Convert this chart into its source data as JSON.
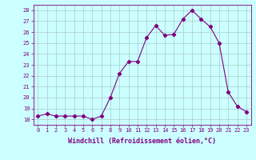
{
  "x": [
    0,
    1,
    2,
    3,
    4,
    5,
    6,
    7,
    8,
    9,
    10,
    11,
    12,
    13,
    14,
    15,
    16,
    17,
    18,
    19,
    20,
    21,
    22,
    23
  ],
  "y": [
    18.3,
    18.5,
    18.3,
    18.3,
    18.3,
    18.3,
    18.0,
    18.3,
    20.0,
    22.2,
    23.3,
    23.3,
    25.5,
    26.6,
    25.7,
    25.8,
    27.2,
    28.0,
    27.2,
    26.5,
    25.0,
    20.5,
    19.2,
    18.7
  ],
  "line_color": "#800080",
  "marker": "D",
  "marker_size": 2.2,
  "bg_color": "#ccffff",
  "grid_color": "#aacccc",
  "xlabel": "Windchill (Refroidissement éolien,°C)",
  "xlim": [
    -0.5,
    23.5
  ],
  "ylim": [
    17.5,
    28.5
  ],
  "yticks": [
    18,
    19,
    20,
    21,
    22,
    23,
    24,
    25,
    26,
    27,
    28
  ],
  "xticks": [
    0,
    1,
    2,
    3,
    4,
    5,
    6,
    7,
    8,
    9,
    10,
    11,
    12,
    13,
    14,
    15,
    16,
    17,
    18,
    19,
    20,
    21,
    22,
    23
  ],
  "tick_fontsize": 5.0,
  "xlabel_fontsize": 6.0
}
